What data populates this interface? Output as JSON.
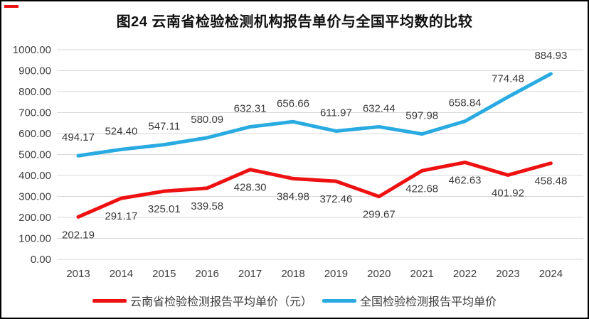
{
  "corner_mark": {
    "color": "#ee1111"
  },
  "chart_data": {
    "type": "line",
    "title": "图24 云南省检验检测机构报告单价与全国平均数的比较",
    "categories": [
      "2013",
      "2014",
      "2015",
      "2016",
      "2017",
      "2018",
      "2019",
      "2020",
      "2021",
      "2022",
      "2023",
      "2024"
    ],
    "series": [
      {
        "id": "yunnan",
        "name": "云南省检验检测报告平均单价（元）",
        "color": "#ee1111",
        "label_position": "below",
        "values": [
          202.19,
          291.17,
          325.01,
          339.58,
          428.3,
          384.98,
          372.46,
          299.67,
          422.68,
          462.63,
          401.92,
          458.48
        ]
      },
      {
        "id": "national",
        "name": "全国检验检测报告平均单价",
        "color": "#29abe2",
        "label_position": "above",
        "values": [
          494.17,
          524.4,
          547.11,
          580.09,
          632.31,
          656.66,
          611.97,
          632.44,
          597.98,
          658.84,
          774.48,
          884.93
        ]
      }
    ],
    "ylim": [
      0,
      1000
    ],
    "yticks": [
      "0.00",
      "100.00",
      "200.00",
      "300.00",
      "400.00",
      "500.00",
      "600.00",
      "700.00",
      "800.00",
      "900.00",
      "1000.00"
    ],
    "grid": true,
    "legend_position": "bottom",
    "colors": {
      "gridline": "#d9d9d9",
      "axis_text": "#404040",
      "data_label": "#3b3b3b"
    }
  }
}
